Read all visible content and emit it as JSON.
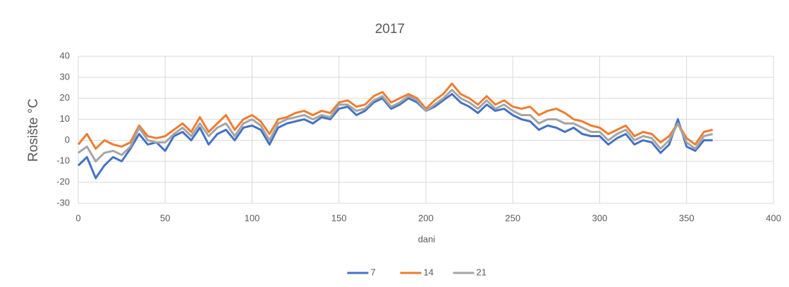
{
  "chart_data": {
    "type": "line",
    "title": "2017",
    "x_label": "dani",
    "y_label": "Rosište °C",
    "x": [
      0,
      5,
      10,
      15,
      20,
      25,
      30,
      35,
      40,
      45,
      50,
      55,
      60,
      65,
      70,
      75,
      80,
      85,
      90,
      95,
      100,
      105,
      110,
      115,
      120,
      125,
      130,
      135,
      140,
      145,
      150,
      155,
      160,
      165,
      170,
      175,
      180,
      185,
      190,
      195,
      200,
      205,
      210,
      215,
      220,
      225,
      230,
      235,
      240,
      245,
      250,
      255,
      260,
      265,
      270,
      275,
      280,
      285,
      290,
      295,
      300,
      305,
      310,
      315,
      320,
      325,
      330,
      335,
      340,
      345,
      350,
      355,
      360,
      365
    ],
    "series": [
      {
        "name": "7",
        "color": "#4472c4",
        "values": [
          -12,
          -8,
          -18,
          -12,
          -8,
          -10,
          -4,
          3,
          -2,
          -1,
          -5,
          2,
          4,
          0,
          6,
          -2,
          3,
          5,
          0,
          6,
          7,
          5,
          -2,
          6,
          8,
          9,
          10,
          8,
          11,
          10,
          15,
          16,
          12,
          14,
          18,
          20,
          15,
          17,
          20,
          18,
          14,
          16,
          19,
          22,
          18,
          16,
          13,
          17,
          14,
          15,
          12,
          10,
          9,
          5,
          7,
          6,
          4,
          6,
          3,
          2,
          2,
          -2,
          1,
          3,
          -2,
          0,
          -1,
          -6,
          -2,
          10,
          -3,
          -5,
          0,
          0
        ]
      },
      {
        "name": "14",
        "color": "#ed7d31",
        "values": [
          -2,
          3,
          -4,
          0,
          -2,
          -3,
          -1,
          7,
          2,
          1,
          2,
          5,
          8,
          4,
          11,
          4,
          8,
          12,
          5,
          10,
          12,
          9,
          3,
          10,
          11,
          13,
          14,
          12,
          14,
          13,
          18,
          19,
          16,
          17,
          21,
          23,
          18,
          20,
          22,
          20,
          15,
          19,
          22,
          27,
          22,
          20,
          17,
          21,
          17,
          19,
          16,
          15,
          16,
          12,
          14,
          15,
          13,
          10,
          9,
          7,
          6,
          3,
          5,
          7,
          2,
          4,
          3,
          -1,
          2,
          8,
          1,
          -2,
          4,
          5
        ]
      },
      {
        "name": "21",
        "color": "#a5a5a5",
        "values": [
          -6,
          -3,
          -10,
          -6,
          -5,
          -7,
          -3,
          6,
          0,
          -1,
          -1,
          3,
          6,
          2,
          8,
          2,
          6,
          8,
          2,
          8,
          10,
          7,
          0,
          8,
          10,
          11,
          12,
          10,
          12,
          11,
          17,
          17,
          14,
          15,
          19,
          21,
          16,
          18,
          21,
          19,
          14,
          17,
          20,
          24,
          20,
          18,
          15,
          19,
          15,
          17,
          14,
          12,
          12,
          8,
          10,
          10,
          8,
          8,
          6,
          4,
          4,
          0,
          3,
          5,
          0,
          2,
          1,
          -4,
          0,
          8,
          -1,
          -4,
          2,
          3
        ]
      }
    ],
    "xlim": [
      0,
      400
    ],
    "xticks": [
      0,
      50,
      100,
      150,
      200,
      250,
      300,
      350,
      400
    ],
    "ylim": [
      -30,
      40
    ],
    "yticks": [
      -30,
      -20,
      -10,
      0,
      10,
      20,
      30,
      40
    ],
    "grid": true,
    "legend": "bottom"
  }
}
